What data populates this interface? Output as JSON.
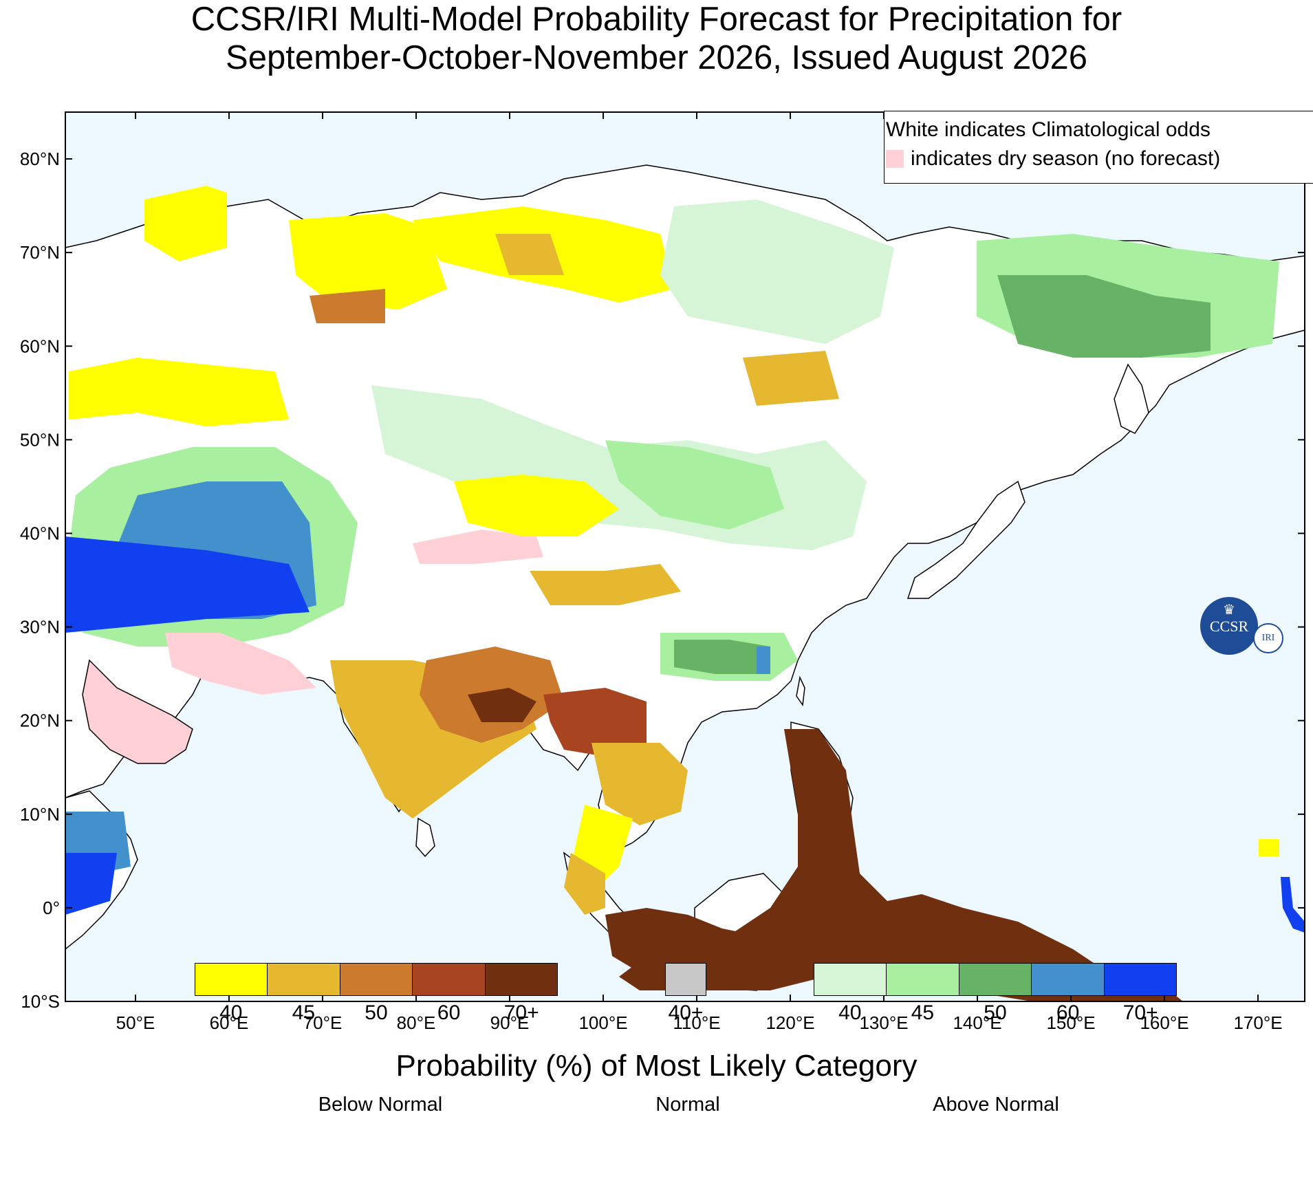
{
  "title_line1": "CCSR/IRI Multi-Model Probability Forecast for Precipitation for",
  "title_line2": "September-October-November 2026, Issued August 2026",
  "legend": {
    "line1": "White indicates Climatological odds",
    "line2": "indicates dry season (no forecast)",
    "dry_season_color": "#ffd0d5"
  },
  "map_axes": {
    "lon_labels": [
      "50°E",
      "60°E",
      "70°E",
      "80°E",
      "90°E",
      "100°E",
      "110°E",
      "120°E",
      "130°E",
      "140°E",
      "150°E",
      "160°E",
      "170°E"
    ],
    "lat_labels": [
      "80°N",
      "70°N",
      "60°N",
      "50°N",
      "40°N",
      "30°N",
      "20°N",
      "10°N",
      "0°",
      "10°S"
    ],
    "lon_range_deg": [
      42.5,
      175.0
    ],
    "lat_range_deg": [
      -10.0,
      85.0
    ]
  },
  "logo": {
    "main": "CCSR",
    "sub": "IRI",
    "icon": "crown-icon"
  },
  "colorbar_title": "Probability (%) of Most Likely Category",
  "categories": [
    {
      "name": "Below Normal",
      "colors": [
        "#ffff00",
        "#e6b830",
        "#cc7a2e",
        "#a84420",
        "#703010"
      ],
      "ticks": [
        "40",
        "45",
        "50",
        "60",
        "70+"
      ]
    },
    {
      "name": "Normal",
      "colors": [
        "#c8c8c8"
      ],
      "ticks": [
        "40+"
      ]
    },
    {
      "name": "Above Normal",
      "colors": [
        "#d6f5d6",
        "#a8f0a0",
        "#66b366",
        "#4290cc",
        "#1040f0"
      ],
      "ticks": [
        "40",
        "45",
        "50",
        "60",
        "70+"
      ]
    }
  ],
  "colors": {
    "ocean": "#eef8ff",
    "land_climatology": "#ffffff",
    "coastline": "#000000",
    "border": "#888888"
  }
}
